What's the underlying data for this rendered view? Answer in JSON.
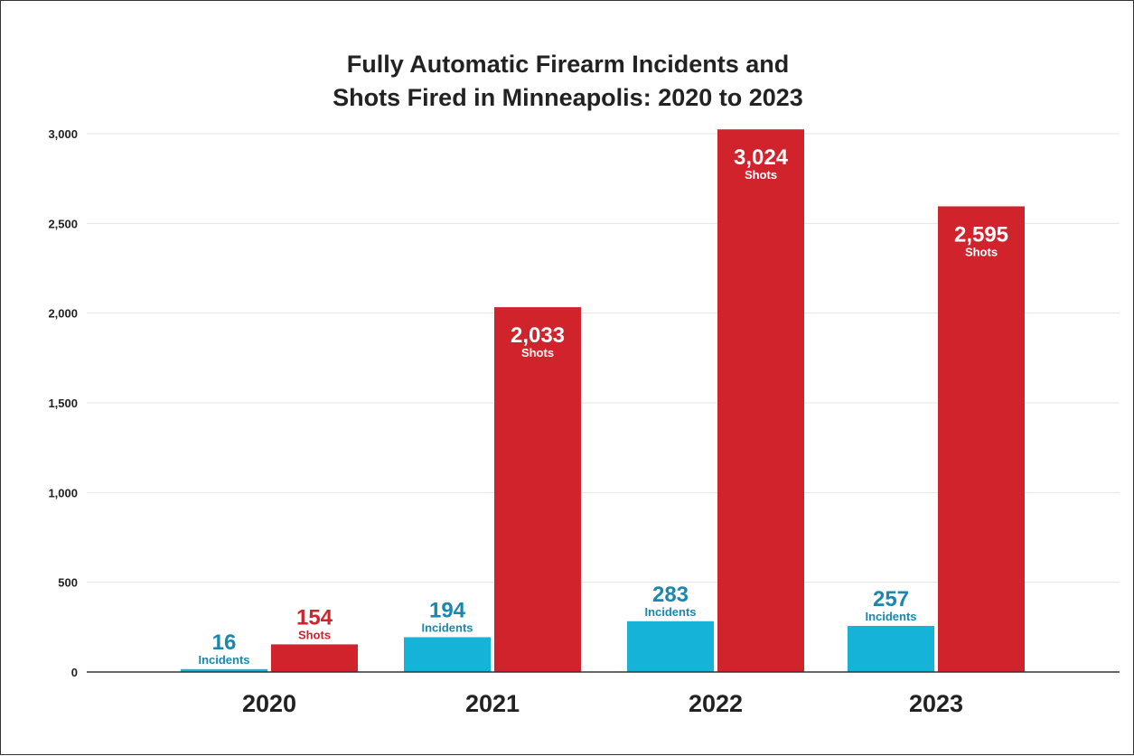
{
  "chart_data": {
    "type": "bar",
    "title_lines": [
      "Fully Automatic Firearm Incidents and",
      "Shots Fired in Minneapolis: 2020 to 2023"
    ],
    "categories": [
      "2020",
      "2021",
      "2022",
      "2023"
    ],
    "series": [
      {
        "name": "Incidents",
        "values": [
          16,
          194,
          283,
          257
        ],
        "value_labels": [
          "16",
          "194",
          "283",
          "257"
        ],
        "color": "#14b3d7",
        "label_color": "#1a87ae"
      },
      {
        "name": "Shots",
        "values": [
          154,
          2033,
          3024,
          2595
        ],
        "value_labels": [
          "154",
          "2,033",
          "3,024",
          "2,595"
        ],
        "color": "#d0232b",
        "label_color": "#d0232b"
      }
    ],
    "y_ticks": [
      0,
      500,
      1000,
      1500,
      2000,
      2500,
      3000
    ],
    "y_tick_labels": [
      "0",
      "500",
      "1,000",
      "1,500",
      "2,000",
      "2,500",
      "3,000"
    ],
    "ylim": [
      0,
      3000
    ],
    "xlabel": "",
    "ylabel": "",
    "grid": true,
    "legend": "none",
    "outside_label_threshold": 300
  }
}
